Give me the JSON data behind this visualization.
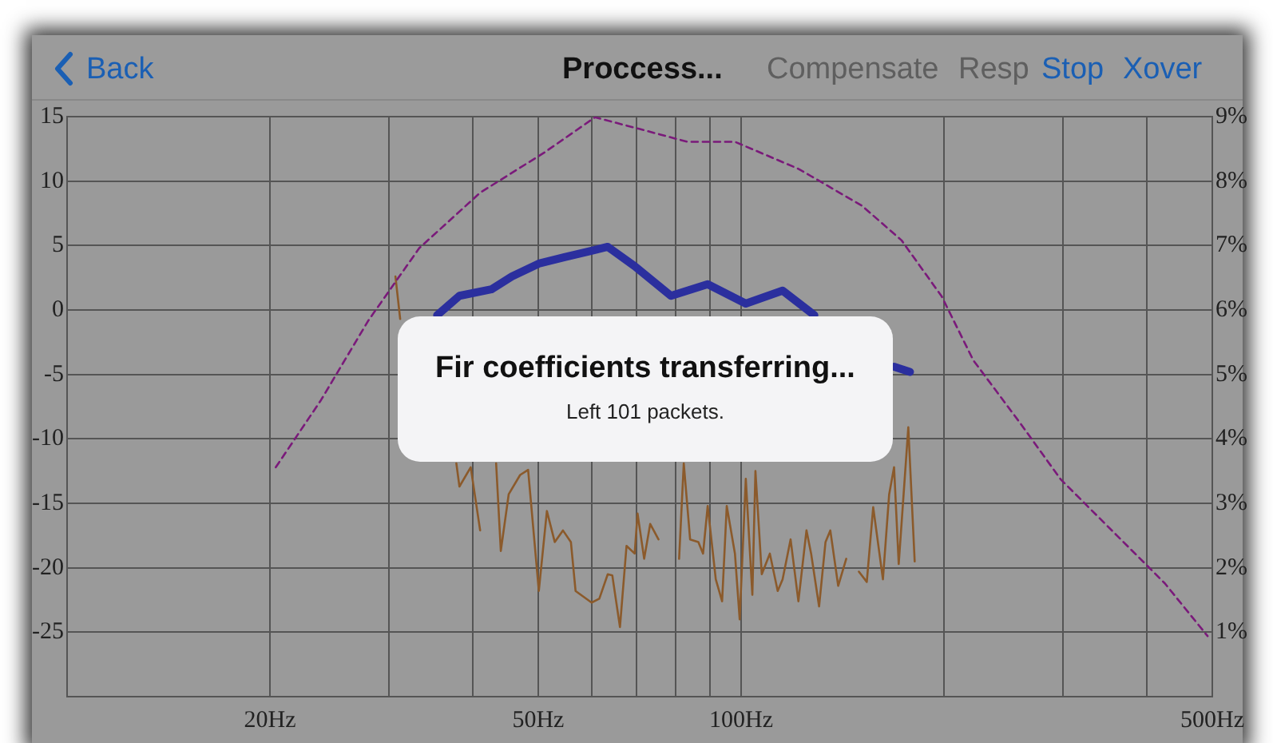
{
  "chart_data": {
    "type": "line",
    "title": "Proccess...",
    "annotations": [
      "Back",
      "Compensate",
      "Resp",
      "Stop",
      "Xover",
      "Fir coefficients transferring...",
      "Left 101 packets."
    ],
    "xlim": [
      10,
      500
    ],
    "log": "x",
    "xticks": [
      {
        "value": 20,
        "label": "20Hz"
      },
      {
        "value": 30,
        "label": null
      },
      {
        "value": 40,
        "label": null
      },
      {
        "value": 50,
        "label": "50Hz"
      },
      {
        "value": 60,
        "label": null
      },
      {
        "value": 70,
        "label": null
      },
      {
        "value": 80,
        "label": null
      },
      {
        "value": 90,
        "label": null
      },
      {
        "value": 100,
        "label": "100Hz"
      },
      {
        "value": 200,
        "label": null
      },
      {
        "value": 300,
        "label": null
      },
      {
        "value": 400,
        "label": null
      },
      {
        "value": 500,
        "label": "500Hz"
      }
    ],
    "ylim": [
      -30,
      15
    ],
    "yticks": [
      -25,
      -20,
      -15,
      -10,
      -5,
      0,
      5,
      10,
      15
    ],
    "y2lim": [
      0,
      9
    ],
    "y2ticks": [
      {
        "value": 1,
        "label": "1%"
      },
      {
        "value": 2,
        "label": "2%"
      },
      {
        "value": 3,
        "label": "3%"
      },
      {
        "value": 4,
        "label": "4%"
      },
      {
        "value": 5,
        "label": "5%"
      },
      {
        "value": 6,
        "label": "6%"
      },
      {
        "value": 7,
        "label": "7%"
      },
      {
        "value": 8,
        "label": "8%"
      },
      {
        "value": 9,
        "label": "9%"
      }
    ],
    "grid": true,
    "legend": false,
    "marker": "none",
    "series": [
      {
        "color": "#7a1a7a",
        "axis": "y2",
        "line_style": "dashed",
        "x": [
          20.4,
          23.8,
          28.0,
          33.3,
          41.0,
          51.0,
          60.7,
          70.6,
          83.2,
          97.9,
          121.6,
          151,
          173,
          198.4,
          221,
          260,
          298,
          361,
          425,
          492
        ],
        "values": [
          3.56,
          4.6,
          5.84,
          6.96,
          7.82,
          8.44,
          8.99,
          8.81,
          8.61,
          8.61,
          8.19,
          7.62,
          7.08,
          6.21,
          5.22,
          4.23,
          3.37,
          2.5,
          1.76,
          0.94
        ]
      },
      {
        "color": "#8b5a2b",
        "line_style": "solid",
        "x": [
          30.7,
          31.2,
          33,
          37.8,
          38.2,
          39.7,
          41.0,
          41.7,
          43.3,
          44.0,
          45.2,
          47.0,
          48.3,
          50.1,
          51.5,
          52.9,
          54.4,
          55.9,
          56.8,
          60.0,
          61.6,
          63.4,
          64.4,
          66.1,
          67.6,
          69.5,
          70.2,
          71.8,
          73.3,
          75.4,
          77.5,
          80.9,
          82.2,
          84.0,
          86.4,
          87.8,
          89.2,
          91.7,
          93.7,
          95.2,
          97.9,
          99.5,
          101.6,
          103.9,
          105.0,
          107.3,
          110.3,
          113.3,
          115.2,
          118.4,
          121.6,
          125.0,
          127.0,
          130.5,
          133.4,
          135.6,
          139.3,
          143.2,
          145.6,
          149.5,
          153.6,
          157.0,
          162.3,
          165.8,
          168.6,
          171.3,
          177.0,
          180.9
        ],
        "values": [
          2.6,
          -0.7,
          null,
          -11.9,
          -13.7,
          -12.2,
          -17.1,
          null,
          -11.9,
          -18.7,
          -14.3,
          -12.8,
          -12.4,
          -21.8,
          -15.6,
          -18.0,
          -17.1,
          -18.0,
          -21.8,
          -22.7,
          -22.4,
          -20.5,
          -20.6,
          -24.6,
          -18.3,
          -18.9,
          -15.8,
          -19.3,
          -16.6,
          -17.8,
          null,
          -19.3,
          -11.9,
          -17.8,
          -18.0,
          -18.9,
          -15.2,
          -20.9,
          -22.6,
          -15.2,
          -18.9,
          -24.0,
          -13.1,
          -22.1,
          -12.5,
          -20.5,
          -18.9,
          -21.8,
          -20.9,
          -17.8,
          -22.6,
          -17.1,
          -18.9,
          -23.0,
          -18.0,
          -17.1,
          -21.4,
          -19.3,
          null,
          -20.3,
          -21.1,
          -15.3,
          -20.9,
          -14.3,
          -12.2,
          -19.7,
          -9.1,
          -19.5
        ]
      },
      {
        "color": "#2b2f9e",
        "line_style": "solid",
        "x": [
          35.4,
          38.2,
          42.6,
          45.7,
          50.1,
          54.7,
          60.0,
          63.4,
          69.5,
          78.7,
          89.2,
          101.6,
          115.2,
          128.4,
          150,
          168.6,
          178
        ],
        "values": [
          -0.4,
          1.1,
          1.6,
          2.6,
          3.6,
          4.1,
          4.6,
          4.9,
          3.4,
          1.1,
          2.0,
          0.5,
          1.5,
          -0.4,
          null,
          -4.4,
          -4.8
        ]
      }
    ]
  }
}
